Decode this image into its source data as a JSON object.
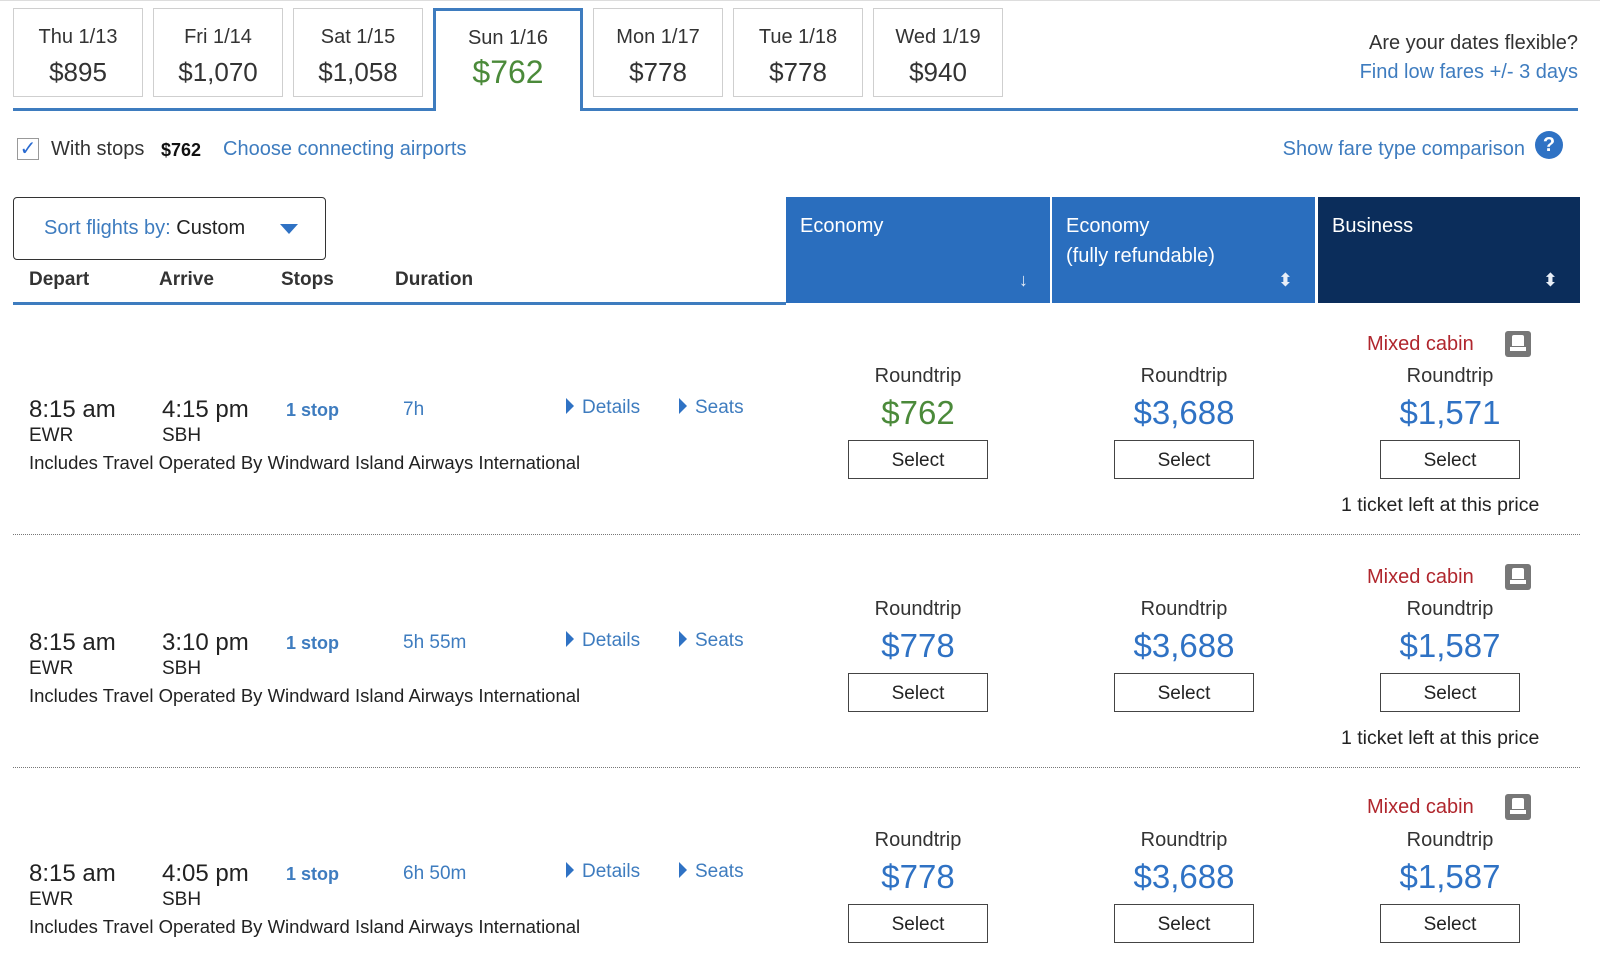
{
  "dates": [
    {
      "day": "Thu 1/13",
      "price": "$895"
    },
    {
      "day": "Fri 1/14",
      "price": "$1,070"
    },
    {
      "day": "Sat 1/15",
      "price": "$1,058"
    },
    {
      "day": "Sun 1/16",
      "price": "$762",
      "selected": true
    },
    {
      "day": "Mon 1/17",
      "price": "$778"
    },
    {
      "day": "Tue 1/18",
      "price": "$778"
    },
    {
      "day": "Wed 1/19",
      "price": "$940"
    }
  ],
  "flexible": {
    "question": "Are your dates flexible?",
    "link": "Find low fares +/- 3 days"
  },
  "filters": {
    "with_stops_label": "With stops",
    "with_stops_price": "$762",
    "with_stops_checked": true,
    "connect_link": "Choose connecting airports",
    "compare_link": "Show fare type comparison",
    "help_glyph": "?"
  },
  "sort": {
    "label": "Sort flights by:",
    "value": "Custom"
  },
  "columns": {
    "depart": "Depart",
    "arrive": "Arrive",
    "stops": "Stops",
    "duration": "Duration"
  },
  "fare_headers": {
    "economy": "Economy",
    "refundable_line1": "Economy",
    "refundable_line2": "(fully refundable)",
    "business": "Business",
    "economy_sort_icon": "↓",
    "sort_icon": "⬍"
  },
  "labels": {
    "details": "Details",
    "seats": "Seats",
    "roundtrip": "Roundtrip",
    "select": "Select",
    "mixed_cabin": "Mixed cabin",
    "tickets_left": "1 ticket left at this price"
  },
  "flights": [
    {
      "depart_time": "8:15 am",
      "depart_airport": "EWR",
      "arrive_time": "4:15 pm",
      "arrive_airport": "SBH",
      "stops": "1 stop",
      "duration": "7h",
      "operated": "Includes Travel Operated By Windward Island Airways International",
      "economy": "$762",
      "refundable": "$3,688",
      "business": "$1,571",
      "tickets_left": true
    },
    {
      "depart_time": "8:15 am",
      "depart_airport": "EWR",
      "arrive_time": "3:10 pm",
      "arrive_airport": "SBH",
      "stops": "1 stop",
      "duration": "5h 55m",
      "operated": "Includes Travel Operated By Windward Island Airways International",
      "economy": "$778",
      "refundable": "$3,688",
      "business": "$1,587",
      "tickets_left": true
    },
    {
      "depart_time": "8:15 am",
      "depart_airport": "EWR",
      "arrive_time": "4:05 pm",
      "arrive_airport": "SBH",
      "stops": "1 stop",
      "duration": "6h 50m",
      "operated": "Includes Travel Operated By Windward Island Airways International",
      "economy": "$778",
      "refundable": "$3,688",
      "business": "$1,587",
      "tickets_left": false
    }
  ],
  "colors": {
    "accent": "#3e7cbf",
    "best_price": "#4b8a3a",
    "business_header": "#0b2d5b",
    "mixed_cabin": "#b0262d"
  }
}
